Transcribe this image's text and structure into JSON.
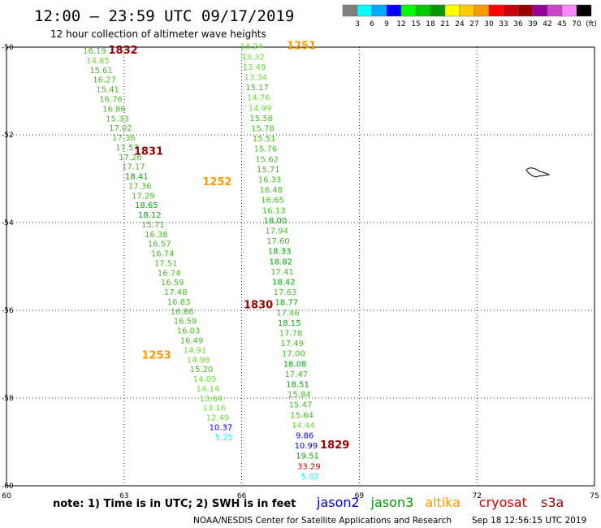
{
  "header": {
    "title": "12:00 — 23:59 UTC 09/17/2019",
    "subtitle": "12 hour collection of altimeter wave heights"
  },
  "colorbar": {
    "colors": [
      "#808080",
      "#00ffff",
      "#00aaff",
      "#0000ff",
      "#00ff00",
      "#00cc00",
      "#009900",
      "#ffff00",
      "#ffcc00",
      "#ff9900",
      "#ff0000",
      "#cc0000",
      "#990000",
      "#990099",
      "#cc44cc",
      "#ff88ff",
      "#000000"
    ],
    "labels": [
      "3",
      "6",
      "9",
      "12",
      "15",
      "18",
      "21",
      "24",
      "27",
      "30",
      "33",
      "36",
      "39",
      "42",
      "45",
      "70",
      "(ft)"
    ]
  },
  "axes": {
    "lon_range": [
      60,
      75
    ],
    "lat_range": [
      -60,
      -50
    ],
    "x_ticks": [
      "60",
      "63",
      "66",
      "69",
      "72",
      "75"
    ],
    "y_ticks": [
      "-50",
      "-52",
      "-54",
      "-56",
      "-58",
      "-60"
    ]
  },
  "tracks": {
    "track_1832_1831": {
      "start": [
        62.25,
        -50.15
      ],
      "end": [
        65.55,
        -58.95
      ],
      "values": [
        "16.19",
        "14.85",
        "15.61",
        "16.27",
        "15.41",
        "16.76",
        "16.86",
        "15.33",
        "17.02",
        "17.36",
        "17.57",
        "17.26",
        "17.17",
        "18.41",
        "17.36",
        "17.29",
        "18.65",
        "18.12",
        "15.71",
        "16.38",
        "16.57",
        "16.74",
        "17.51",
        "16.74",
        "16.59",
        "17.48",
        "16.83",
        "16.86",
        "16.59",
        "16.03",
        "16.49",
        "14.91",
        "14.98",
        "15.20",
        "14.09",
        "14.14",
        "13.64",
        "13.16",
        "12.49",
        "10.37",
        "5.25"
      ]
    },
    "track_1251_1252_1830_1829": {
      "start": [
        66.25,
        -50.05
      ],
      "end": [
        67.75,
        -59.85
      ],
      "values": [
        "13.24",
        "13.32",
        "13.49",
        "13.34",
        "15.17",
        "14.76",
        "14.99",
        "15.58",
        "15.78",
        "15.51",
        "15.76",
        "15.62",
        "15.71",
        "16.33",
        "16.48",
        "16.65",
        "16.13",
        "18.00",
        "17.94",
        "17.60",
        "18.33",
        "18.82",
        "17.41",
        "18.42",
        "17.63",
        "18.77",
        "17.46",
        "18.15",
        "17.78",
        "17.49",
        "17.00",
        "18.08",
        "17.47",
        "18.51",
        "15.84",
        "15.47",
        "15.64",
        "14.44",
        "9.86",
        "10.99",
        "19.51",
        "33.29",
        "5.02"
      ]
    }
  },
  "pass_labels": [
    {
      "text": "1832",
      "color": "#990000",
      "lon": 62.6,
      "lat": -50.15
    },
    {
      "text": "1831",
      "color": "#990000",
      "lon": 63.25,
      "lat": -52.45
    },
    {
      "text": "1251",
      "color": "#ff9900",
      "lon": 67.15,
      "lat": -50.05
    },
    {
      "text": "1252",
      "color": "#ff9900",
      "lon": 65.0,
      "lat": -53.15
    },
    {
      "text": "1830",
      "color": "#990000",
      "lon": 66.05,
      "lat": -55.95
    },
    {
      "text": "1253",
      "color": "#ff9900",
      "lon": 63.45,
      "lat": -57.1
    },
    {
      "text": "1829",
      "color": "#990000",
      "lon": 68.0,
      "lat": -59.15
    }
  ],
  "legend": {
    "note": "note: 1) Time is in UTC; 2) SWH is in feet",
    "missions": [
      {
        "name": "jason2",
        "color": "#0000cc"
      },
      {
        "name": "jason3",
        "color": "#009900"
      },
      {
        "name": "altika",
        "color": "#ff9900"
      },
      {
        "name": "cryosat",
        "color": "#cc0000"
      },
      {
        "name": "s3a",
        "color": "#990000"
      }
    ],
    "credit": "NOAA/NESDIS Center for Satellite Applications and Research",
    "timestamp": "Sep 18 12:56:15 UTC 2019"
  }
}
